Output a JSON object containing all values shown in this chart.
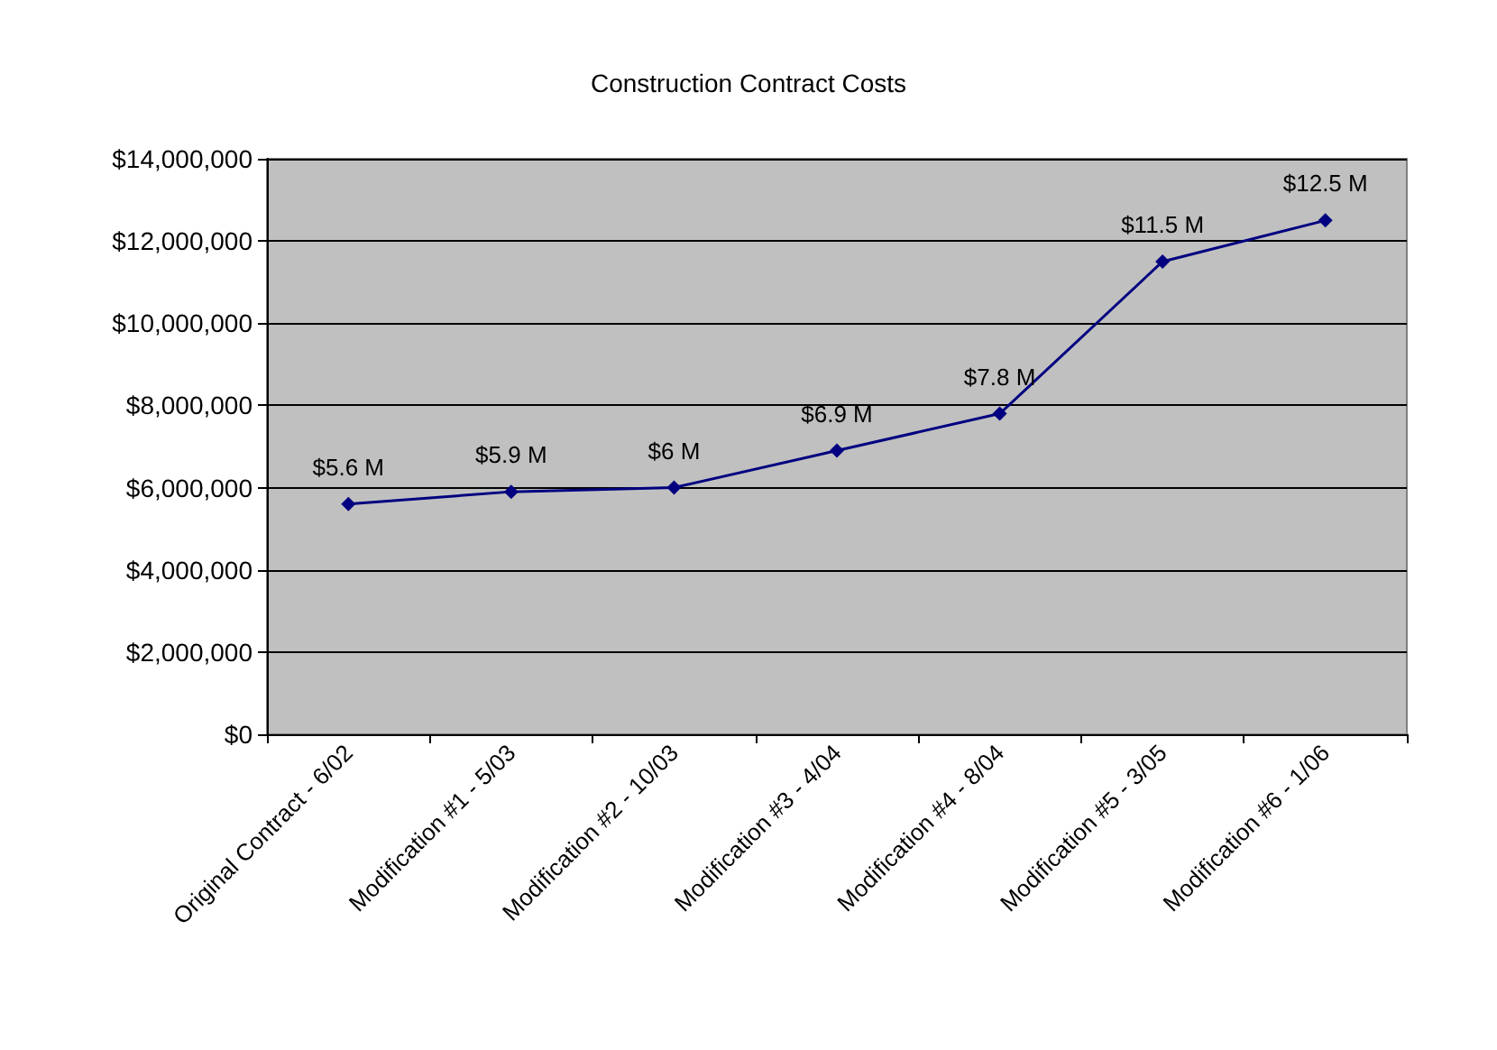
{
  "chart_data": {
    "type": "line",
    "title": "Construction Contract Costs",
    "categories": [
      "Original Contract - 6/02",
      "Modification #1 - 5/03",
      "Modification #2 - 10/03",
      "Modification #3 - 4/04",
      "Modification #4 - 8/04",
      "Modification #5 - 3/05",
      "Modification #6 - 1/06"
    ],
    "series": [
      {
        "color": "#000080",
        "values": [
          5600000,
          5900000,
          6000000,
          6900000,
          7800000,
          11500000,
          12500000
        ],
        "value_labels": [
          "$5.6 M",
          "$5.9 M",
          "$6 M",
          "$6.9 M",
          "$7.8 M",
          "$11.5 M",
          "$12.5 M"
        ]
      }
    ],
    "ylim": [
      0,
      14000000
    ],
    "yticks": [
      {
        "value": 0,
        "label": "$0"
      },
      {
        "value": 2000000,
        "label": "$2,000,000"
      },
      {
        "value": 4000000,
        "label": "$4,000,000"
      },
      {
        "value": 6000000,
        "label": "$6,000,000"
      },
      {
        "value": 8000000,
        "label": "$8,000,000"
      },
      {
        "value": 10000000,
        "label": "$10,000,000"
      },
      {
        "value": 12000000,
        "label": "$12,000,000"
      },
      {
        "value": 14000000,
        "label": "$14,000,000"
      }
    ],
    "grid": "y",
    "marker": "diamond",
    "line_style": "solid"
  }
}
